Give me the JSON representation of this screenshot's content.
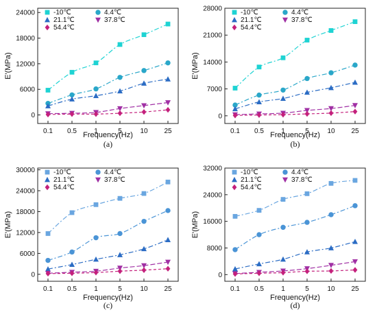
{
  "chart_data": [
    {
      "panel": "(a)",
      "type": "scatter",
      "xlabel": "Frequency(Hz)",
      "ylabel": "E'(MPa)",
      "x": [
        "0.1",
        "0.5",
        "1",
        "5",
        "10",
        "25"
      ],
      "ylim": [
        -2000,
        25000
      ],
      "yticks": [
        "0",
        "6000",
        "12000",
        "18000",
        "24000"
      ],
      "yticks_num": [
        0,
        6000,
        12000,
        18000,
        24000
      ],
      "series": [
        {
          "name": "-10℃",
          "values": [
            5800,
            10000,
            12200,
            16500,
            18800,
            21300
          ]
        },
        {
          "name": "4.4℃",
          "values": [
            2700,
            4700,
            6100,
            8800,
            10400,
            12200
          ]
        },
        {
          "name": "21.1℃",
          "values": [
            2100,
            3700,
            4500,
            5600,
            7400,
            8400
          ]
        },
        {
          "name": "37.8℃",
          "values": [
            300,
            400,
            600,
            1500,
            2200,
            2900
          ]
        },
        {
          "name": "54.4℃",
          "values": [
            100,
            200,
            200,
            400,
            700,
            1200
          ]
        }
      ]
    },
    {
      "panel": "(b)",
      "type": "scatter",
      "xlabel": "Frequency(Hz)",
      "ylabel": "E'(MPa)",
      "x": [
        "0.1",
        "0.5",
        "1",
        "5",
        "10",
        "25"
      ],
      "ylim": [
        -2000,
        28000
      ],
      "yticks": [
        "0",
        "7000",
        "14000",
        "21000",
        "28000"
      ],
      "yticks_num": [
        0,
        7000,
        14000,
        21000,
        28000
      ],
      "series": [
        {
          "name": "-10℃",
          "values": [
            7200,
            12700,
            15100,
            19700,
            22200,
            24500
          ]
        },
        {
          "name": "4.4℃",
          "values": [
            2800,
            5400,
            6700,
            9700,
            11200,
            13200
          ]
        },
        {
          "name": "21.1℃",
          "values": [
            1800,
            3600,
            4500,
            6100,
            7300,
            8700
          ]
        },
        {
          "name": "37.8℃",
          "values": [
            300,
            500,
            700,
            1400,
            1900,
            2700
          ]
        },
        {
          "name": "54.4℃",
          "values": [
            100,
            200,
            300,
            500,
            700,
            1100
          ]
        }
      ]
    },
    {
      "panel": "(c)",
      "type": "scatter",
      "xlabel": "Frequency(Hz)",
      "ylabel": "E'(MPa)",
      "x": [
        "0.1",
        "0.5",
        "1",
        "5",
        "10",
        "25"
      ],
      "ylim": [
        -2000,
        30500
      ],
      "yticks": [
        "0",
        "6000",
        "12000",
        "18000",
        "24000",
        "30000"
      ],
      "yticks_num": [
        0,
        6000,
        12000,
        18000,
        24000,
        30000
      ],
      "series": [
        {
          "name": "-10℃",
          "values": [
            11700,
            17700,
            20000,
            21800,
            23200,
            26500
          ]
        },
        {
          "name": "4.4℃",
          "values": [
            4000,
            6400,
            10500,
            11700,
            15200,
            18300
          ]
        },
        {
          "name": "21.1℃",
          "values": [
            1500,
            2800,
            4300,
            5600,
            7300,
            9900
          ]
        },
        {
          "name": "37.8℃",
          "values": [
            300,
            600,
            900,
            1800,
            2500,
            3500
          ]
        },
        {
          "name": "54.4℃",
          "values": [
            200,
            300,
            500,
            900,
            1200,
            1600
          ]
        }
      ]
    },
    {
      "panel": "(d)",
      "type": "scatter",
      "xlabel": "Frequency(Hz)",
      "ylabel": "E'(MPa)",
      "x": [
        "0.1",
        "0.5",
        "1",
        "5",
        "10",
        "25"
      ],
      "ylim": [
        -2000,
        32000
      ],
      "yticks": [
        "0",
        "8000",
        "16000",
        "24000",
        "32000"
      ],
      "yticks_num": [
        0,
        8000,
        16000,
        24000,
        32000
      ],
      "series": [
        {
          "name": "-10℃",
          "values": [
            17500,
            19300,
            22600,
            24300,
            27400,
            28300
          ]
        },
        {
          "name": "4.4℃",
          "values": [
            7500,
            12000,
            14200,
            15700,
            18000,
            20700
          ]
        },
        {
          "name": "21.1℃",
          "values": [
            1700,
            3200,
            4600,
            6800,
            8000,
            9900
          ]
        },
        {
          "name": "37.8℃",
          "values": [
            300,
            700,
            1100,
            1800,
            2800,
            3900
          ]
        },
        {
          "name": "54.4℃",
          "values": [
            200,
            400,
            600,
            1000,
            1100,
            1400
          ]
        }
      ]
    }
  ],
  "styles": {
    "series_colors": [
      "#1ed3d3",
      "#2aa7c9",
      "#2b6cc4",
      "#a02fa4",
      "#c4207c"
    ],
    "panel_c_d_colors": [
      "#6aa6e0",
      "#4a94d6",
      "#2b6cc4",
      "#a02fa4",
      "#c4207c"
    ],
    "markers": [
      "square",
      "circle",
      "triangle-up",
      "triangle-down",
      "diamond"
    ]
  }
}
